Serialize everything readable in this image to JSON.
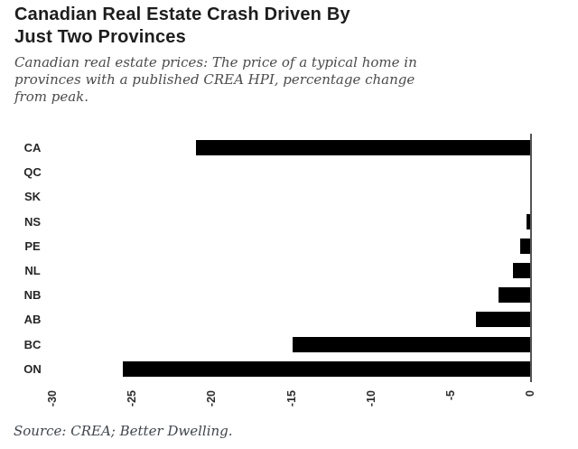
{
  "header": {
    "title": "Canadian Real Estate Crash Driven By Just Two Provinces",
    "title_lines": [
      "Canadian Real Estate Crash Driven By",
      "Just Two Provinces"
    ],
    "subtitle": "Canadian real estate prices: The price of a typical home in provinces with a published CREA HPI, percentage change from peak.",
    "subtitle_lines": [
      "Canadian real estate prices: The price of a typical home in",
      "provinces with a published CREA HPI, percentage change",
      "from peak."
    ]
  },
  "chart_data": {
    "type": "bar",
    "orientation": "horizontal",
    "title": "Canadian Real Estate Crash Driven By Just Two Provinces",
    "subtitle": "Canadian real estate prices: The price of a typical home in provinces with a published CREA HPI, percentage change from peak.",
    "categories": [
      "CA",
      "QC",
      "SK",
      "NS",
      "PE",
      "NL",
      "NB",
      "AB",
      "BC",
      "ON"
    ],
    "values": [
      -21,
      0,
      0,
      -0.2,
      -0.6,
      -1.1,
      -2.0,
      -3.4,
      -14.9,
      -25.6
    ],
    "unit": "percent change from peak",
    "xlabel": "",
    "ylabel": "",
    "xlim": [
      -30,
      0
    ],
    "xticks": [
      -30,
      -25,
      -20,
      -15,
      -10,
      -5,
      0
    ],
    "grid": false,
    "legend": null,
    "bar_color": "#000000",
    "zero_axis_color": "#555555"
  },
  "footer": {
    "source": "Source: CREA; Better Dwelling."
  },
  "colors": {
    "background": "#ffffff",
    "title": "#1d1d1d",
    "subtitle": "#4b4b4b",
    "bar": "#000000",
    "axis_line": "#555555",
    "tick_label": "#2e2e2e",
    "source": "#40454d"
  }
}
